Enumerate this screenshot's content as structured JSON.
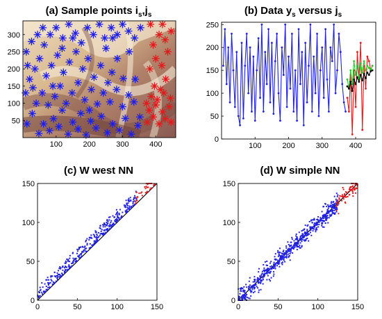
{
  "colors": {
    "blue": "#1f1fe6",
    "red": "#e31a1c",
    "green": "#22cc22",
    "black": "#000000"
  },
  "panels": {
    "a": {
      "label": "(a)",
      "title_main": "Sample points i",
      "sub1": "s",
      "comma": ",j",
      "sub2": "s"
    },
    "b": {
      "label": "(b)",
      "title_main": "Data y",
      "sub1": "s",
      "mid": " versus j",
      "sub2": "s"
    },
    "c": {
      "label": "(c)",
      "title": "W west NN"
    },
    "d": {
      "label": "(d)",
      "title": "W simple NN"
    }
  },
  "chart_data": [
    {
      "type": "scatter",
      "panel": "a",
      "title": "(a) Sample points is,js",
      "background": "shaded terrain image",
      "xlim": [
        0,
        460
      ],
      "ylim": [
        340,
        0
      ],
      "x_ticks": [
        100,
        200,
        300,
        400
      ],
      "y_ticks": [
        50,
        100,
        150,
        200,
        250,
        300
      ],
      "series": [
        {
          "color": "blue",
          "marker": "asterisk",
          "points": [
            [
              12,
              40
            ],
            [
              28,
              70
            ],
            [
              48,
              12
            ],
            [
              62,
              40
            ],
            [
              80,
              20
            ],
            [
              92,
              55
            ],
            [
              108,
              32
            ],
            [
              118,
              80
            ],
            [
              136,
              10
            ],
            [
              150,
              45
            ],
            [
              166,
              25
            ],
            [
              174,
              70
            ],
            [
              190,
              8
            ],
            [
              204,
              48
            ],
            [
              220,
              28
            ],
            [
              236,
              62
            ],
            [
              254,
              14
            ],
            [
              270,
              40
            ],
            [
              290,
              22
            ],
            [
              308,
              56
            ],
            [
              326,
              10
            ],
            [
              346,
              35
            ],
            [
              40,
              100
            ],
            [
              58,
              130
            ],
            [
              76,
              95
            ],
            [
              96,
              120
            ],
            [
              112,
              150
            ],
            [
              130,
              100
            ],
            [
              148,
              130
            ],
            [
              166,
              160
            ],
            [
              186,
              110
            ],
            [
              206,
              140
            ],
            [
              224,
              98
            ],
            [
              242,
              130
            ],
            [
              262,
              104
            ],
            [
              282,
              140
            ],
            [
              300,
              90
            ],
            [
              318,
              124
            ],
            [
              334,
              104
            ],
            [
              20,
              170
            ],
            [
              36,
              200
            ],
            [
              50,
              230
            ],
            [
              70,
              180
            ],
            [
              86,
              210
            ],
            [
              104,
              240
            ],
            [
              122,
              190
            ],
            [
              140,
              220
            ],
            [
              160,
              250
            ],
            [
              180,
              200
            ],
            [
              196,
              230
            ],
            [
              214,
              176
            ],
            [
              234,
              210
            ],
            [
              250,
              260
            ],
            [
              268,
              190
            ],
            [
              284,
              230
            ],
            [
              302,
              172
            ],
            [
              320,
              250
            ],
            [
              10,
              250
            ],
            [
              26,
              280
            ],
            [
              44,
              300
            ],
            [
              64,
              270
            ],
            [
              82,
              300
            ],
            [
              100,
              320
            ],
            [
              120,
              290
            ],
            [
              138,
              330
            ],
            [
              158,
              304
            ],
            [
              176,
              276
            ],
            [
              194,
              320
            ],
            [
              212,
              300
            ],
            [
              230,
              330
            ],
            [
              246,
              290
            ],
            [
              266,
              320
            ],
            [
              284,
              300
            ],
            [
              300,
              330
            ],
            [
              318,
              310
            ],
            [
              336,
              290
            ],
            [
              354,
              320
            ],
            [
              8,
              130
            ],
            [
              14,
              210
            ],
            [
              60,
              320
            ],
            [
              150,
              290
            ],
            [
              90,
              150
            ],
            [
              270,
              290
            ],
            [
              338,
              170
            ],
            [
              352,
              60
            ],
            [
              200,
              80
            ],
            [
              30,
              145
            ],
            [
              118,
              260
            ],
            [
              256,
              160
            ]
          ]
        },
        {
          "color": "red",
          "marker": "asterisk",
          "points": [
            [
              374,
              45
            ],
            [
              392,
              60
            ],
            [
              410,
              40
            ],
            [
              428,
              55
            ],
            [
              446,
              45
            ],
            [
              380,
              80
            ],
            [
              400,
              95
            ],
            [
              420,
              75
            ],
            [
              440,
              90
            ],
            [
              386,
              120
            ],
            [
              404,
              110
            ],
            [
              424,
              130
            ],
            [
              444,
              115
            ],
            [
              396,
              150
            ],
            [
              414,
              140
            ],
            [
              382,
              200
            ],
            [
              400,
              230
            ],
            [
              418,
              210
            ],
            [
              436,
              250
            ],
            [
              392,
              270
            ],
            [
              410,
              300
            ],
            [
              428,
              285
            ],
            [
              446,
              310
            ],
            [
              384,
              330
            ],
            [
              420,
              330
            ],
            [
              372,
              100
            ],
            [
              430,
              170
            ]
          ]
        }
      ]
    },
    {
      "type": "line",
      "panel": "b",
      "title": "(b) Data ys versus js",
      "xlim": [
        0,
        460
      ],
      "ylim": [
        0,
        255
      ],
      "x_ticks": [
        100,
        200,
        300,
        400
      ],
      "y_ticks": [
        0,
        50,
        100,
        150,
        200,
        250
      ],
      "series": [
        {
          "color": "blue",
          "x": [
            5,
            10,
            15,
            20,
            25,
            30,
            35,
            40,
            45,
            50,
            55,
            60,
            65,
            70,
            75,
            80,
            85,
            90,
            95,
            100,
            105,
            110,
            115,
            120,
            125,
            130,
            135,
            140,
            145,
            150,
            155,
            160,
            165,
            170,
            175,
            180,
            185,
            190,
            195,
            200,
            205,
            210,
            215,
            220,
            225,
            230,
            235,
            240,
            245,
            250,
            255,
            260,
            265,
            270,
            275,
            280,
            285,
            290,
            295,
            300,
            305,
            310,
            315,
            320,
            325,
            330,
            335,
            340,
            345,
            350,
            355,
            360,
            365,
            370
          ],
          "y": [
            160,
            240,
            120,
            200,
            80,
            230,
            150,
            70,
            190,
            50,
            30,
            210,
            45,
            160,
            230,
            100,
            200,
            60,
            180,
            40,
            150,
            220,
            90,
            250,
            60,
            190,
            120,
            240,
            80,
            210,
            55,
            170,
            230,
            100,
            40,
            200,
            140,
            250,
            70,
            180,
            110,
            230,
            60,
            150,
            40,
            240,
            120,
            190,
            30,
            210,
            80,
            160,
            250,
            60,
            180,
            100,
            230,
            50,
            150,
            200,
            90,
            240,
            130,
            60,
            200,
            170,
            250,
            100,
            150,
            230,
            190,
            120,
            80,
            60
          ]
        },
        {
          "color": "red",
          "x": [
            375,
            380,
            385,
            390,
            395,
            400,
            405,
            410,
            415,
            420,
            425,
            430,
            435,
            440,
            445,
            450
          ],
          "y": [
            90,
            60,
            140,
            10,
            150,
            70,
            190,
            130,
            210,
            20,
            160,
            110,
            180,
            170,
            150,
            160
          ]
        },
        {
          "color": "green",
          "x": [
            375,
            380,
            385,
            390,
            395,
            400,
            405,
            410,
            415,
            420,
            425,
            430,
            435,
            440,
            445,
            450
          ],
          "y": [
            130,
            110,
            150,
            120,
            170,
            140,
            160,
            130,
            165,
            145,
            170,
            150,
            160,
            155,
            150,
            160
          ]
        },
        {
          "color": "black",
          "x": [
            375,
            380,
            385,
            390,
            395,
            400,
            405,
            410,
            415,
            420,
            425,
            430,
            435,
            440,
            445,
            450
          ],
          "y": [
            115,
            110,
            125,
            105,
            130,
            120,
            135,
            125,
            140,
            128,
            142,
            133,
            145,
            140,
            148,
            150
          ]
        }
      ]
    },
    {
      "type": "scatter",
      "panel": "c",
      "title": "(c) W west NN",
      "xlim": [
        0,
        150
      ],
      "ylim": [
        150,
        0
      ],
      "x_ticks": [
        0,
        50,
        100,
        150
      ],
      "y_ticks": [
        0,
        50,
        100,
        150
      ],
      "diagonal": "y = x",
      "blue_count": 360,
      "blue_max_x": 125,
      "red_count": 35
    },
    {
      "type": "scatter",
      "panel": "d",
      "title": "(d) W simple NN",
      "xlim": [
        0,
        150
      ],
      "ylim": [
        150,
        0
      ],
      "x_ticks": [
        0,
        50,
        100,
        150
      ],
      "y_ticks": [
        0,
        50,
        100,
        150
      ],
      "diagonal": "y = x",
      "blue_count": 620,
      "blue_max_x": 125,
      "red_count": 70
    }
  ]
}
